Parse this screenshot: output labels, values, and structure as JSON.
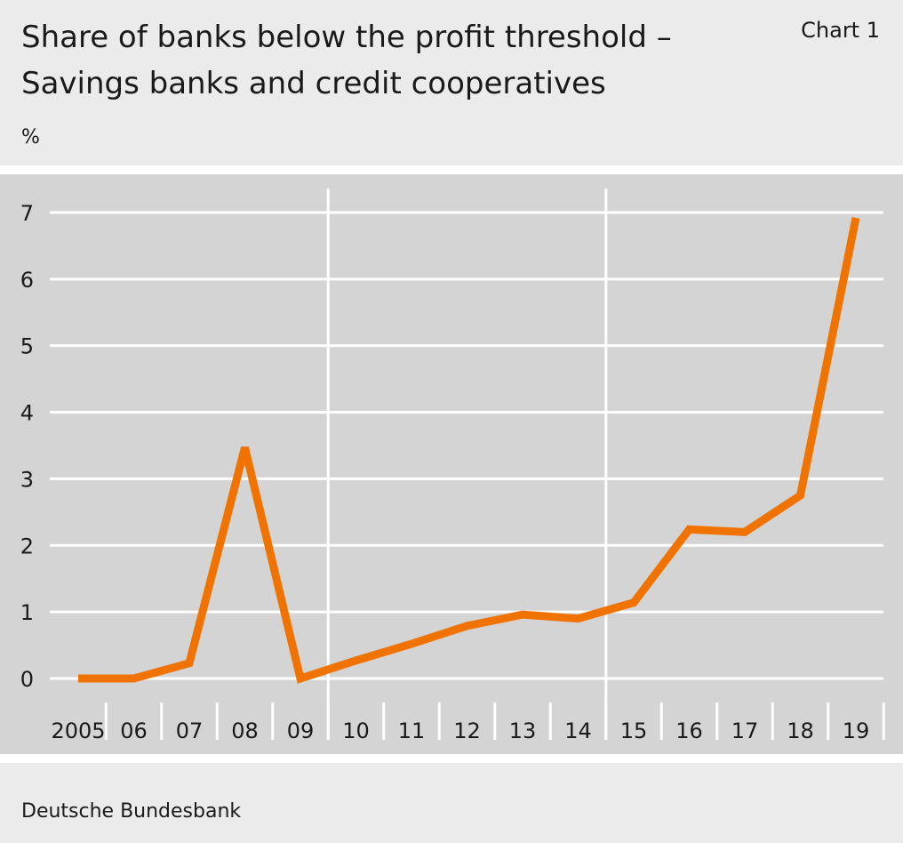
{
  "header": {
    "title_line1": "Share of banks below the profit threshold –",
    "title_line2": "Savings banks and credit cooperatives",
    "chart_label": "Chart 1",
    "unit": "%"
  },
  "footer": {
    "source": "Deutsche Bundesbank"
  },
  "colors": {
    "series": "#f07300",
    "plot_background": "#d4d4d4",
    "page_background": "#ebebeb",
    "grid": "#ffffff"
  },
  "chart_data": {
    "type": "line",
    "categories": [
      "2005",
      "06",
      "07",
      "08",
      "09",
      "10",
      "11",
      "12",
      "13",
      "14",
      "15",
      "16",
      "17",
      "18",
      "19"
    ],
    "series": [
      {
        "values": [
          0.0,
          0.0,
          0.23,
          3.47,
          0.0,
          0.27,
          0.52,
          0.79,
          0.96,
          0.9,
          1.14,
          2.24,
          2.2,
          2.75,
          6.92
        ]
      }
    ],
    "ylabel": "%",
    "ylim": [
      0,
      7
    ],
    "yticks": [
      0,
      1,
      2,
      3,
      4,
      5,
      6,
      7
    ],
    "grid": true,
    "separator_after": [
      "2009",
      "2014"
    ]
  }
}
